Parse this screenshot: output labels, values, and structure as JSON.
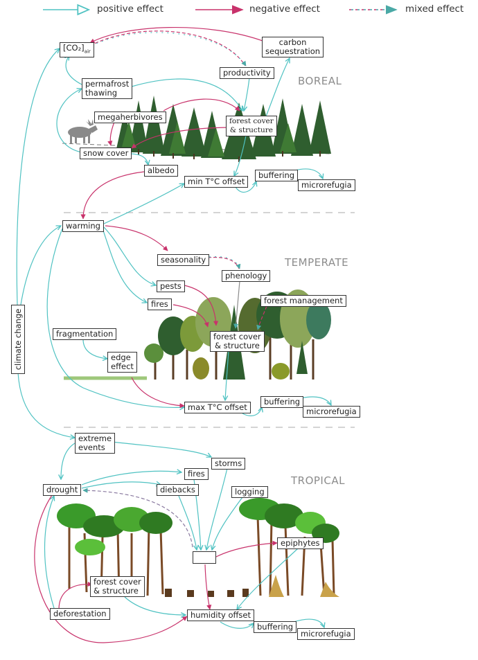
{
  "legend": {
    "positive": "positive effect",
    "negative": "negative effect",
    "mixed": "mixed effect"
  },
  "colors": {
    "positive": "#4fc2c2",
    "negative": "#c8326b",
    "mixed": "#b94f7a",
    "region_label": "#8c8c8c",
    "tree_dark": "#2f5e2f",
    "tree_mid": "#3f7a34",
    "tree_light": "#7c9a3a",
    "trunk": "#7a4a26"
  },
  "regions": {
    "boreal": "BOREAL",
    "temperate": "TEMPERATE",
    "tropical": "TROPICAL"
  },
  "side": {
    "climate_change": "climate change"
  },
  "boreal": {
    "co2_main": "[CO₂]",
    "co2_sub": "air",
    "carbon_sequestration": "carbon\nsequestration",
    "productivity": "productivity",
    "permafrost_thawing": "permafrost\nthawing",
    "megaherbivores": "megaherbivores",
    "forest_cover": "forest cover\n& structure",
    "snow_cover": "snow cover",
    "albedo": "albedo",
    "min_offset": "min T°C offset",
    "buffering": "buffering",
    "microrefugia": "microrefugia"
  },
  "temperate": {
    "warming": "warming",
    "seasonality": "seasonality",
    "phenology": "phenology",
    "pests": "pests",
    "fires": "fires",
    "forest_management": "forest management",
    "forest_cover": "forest cover\n& structure",
    "fragmentation": "fragmentation",
    "edge_effect": "edge\neffect",
    "max_offset": "max T°C offset",
    "buffering": "buffering",
    "microrefugia": "microrefugia"
  },
  "tropical": {
    "extreme_events": "extreme\nevents",
    "storms": "storms",
    "fires": "fires",
    "drought": "drought",
    "diebacks": "diebacks",
    "logging": "logging",
    "epiphytes": "epiphytes",
    "forest_cover": "forest cover\n& structure",
    "deforestation": "deforestation",
    "humidity_offset": "humidity offset",
    "buffering": "buffering",
    "microrefugia": "microrefugia"
  }
}
